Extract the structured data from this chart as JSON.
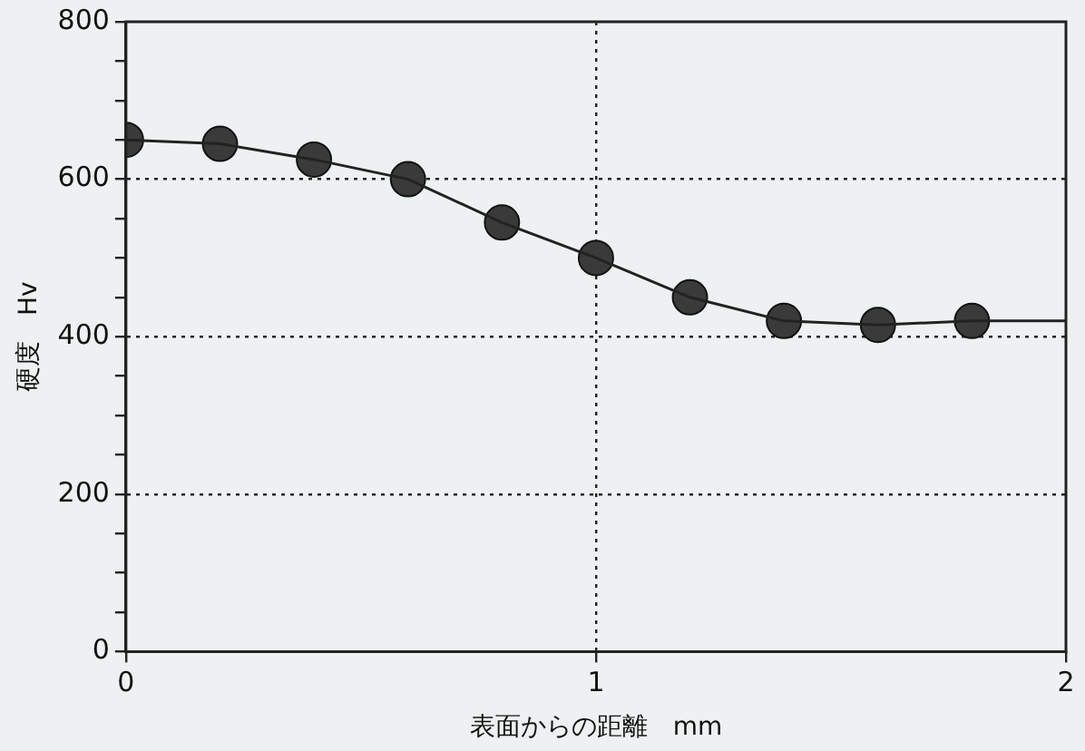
{
  "chart_data": {
    "type": "line",
    "xlabel": "表面からの距離　mm",
    "ylabel": "硬度　Hv",
    "xlim": [
      0,
      2
    ],
    "xticks": [
      0,
      1,
      2
    ],
    "ylim": [
      0,
      800
    ],
    "yticks": [
      0,
      {
        "value": 50,
        "label": null
      },
      {
        "value": 100,
        "label": null
      },
      {
        "value": 150,
        "label": null
      },
      200,
      {
        "value": 250,
        "label": null
      },
      {
        "value": 300,
        "label": null
      },
      {
        "value": 350,
        "label": null
      },
      400,
      {
        "value": 450,
        "label": null
      },
      {
        "value": 500,
        "label": null
      },
      {
        "value": 550,
        "label": null
      },
      600,
      {
        "value": 650,
        "label": null
      },
      {
        "value": 700,
        "label": null
      },
      {
        "value": 750,
        "label": null
      },
      800
    ],
    "grid": true,
    "legend": false,
    "series": [
      {
        "color": "#222222",
        "marker": "none",
        "line_style": "solid",
        "x": [
          0,
          0.2,
          0.4,
          0.6,
          0.8,
          1.0,
          1.2,
          1.4,
          1.6,
          1.8,
          2.0
        ],
        "values": [
          650,
          645,
          625,
          600,
          545,
          500,
          450,
          420,
          415,
          420,
          420
        ]
      },
      {
        "type": "scatter",
        "color": "#3a3a3a",
        "marker": "circle",
        "x": [
          0,
          0.2,
          0.4,
          0.6,
          0.8,
          1.0,
          1.2,
          1.4,
          1.6,
          1.8
        ],
        "values": [
          650,
          645,
          625,
          600,
          545,
          500,
          450,
          420,
          415,
          420
        ]
      }
    ]
  }
}
